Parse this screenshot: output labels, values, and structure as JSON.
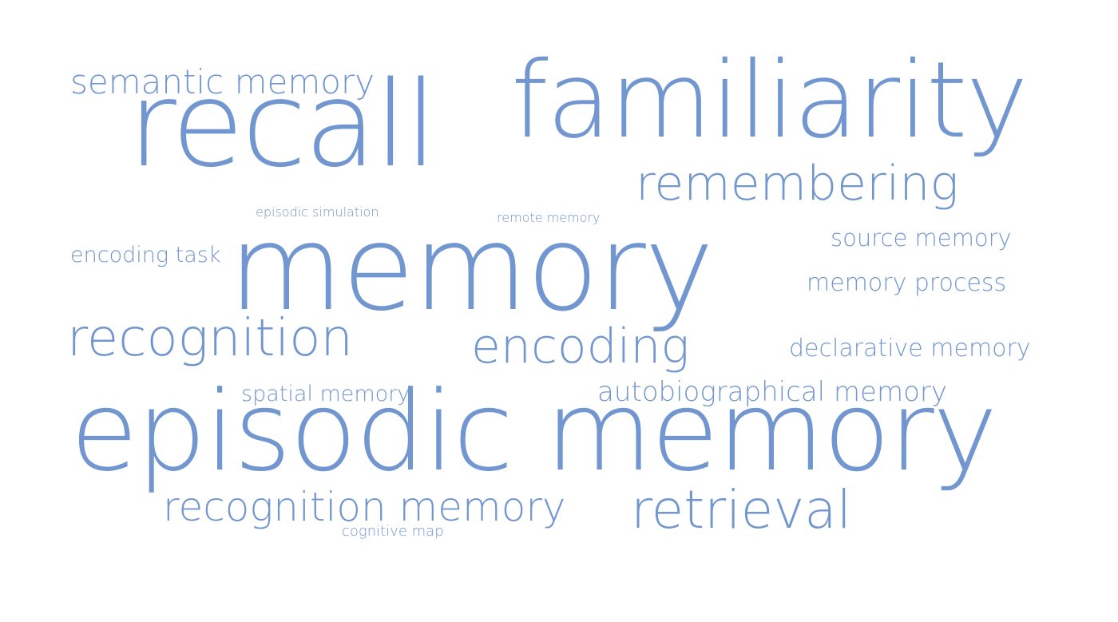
{
  "cloud": {
    "color": "#7296cf",
    "background": "#ffffff",
    "words": {
      "memory": "memory",
      "episodic_memory": "episodic memory",
      "recall": "recall",
      "familiarity": "familiarity",
      "remembering": "remembering",
      "recognition": "recognition",
      "encoding": "encoding",
      "retrieval": "retrieval",
      "recognition_memory": "recognition memory",
      "semantic_memory": "semantic memory",
      "autobiographical_memory": "autobiographical memory",
      "declarative_memory": "declarative memory",
      "source_memory": "source memory",
      "memory_process": "memory process",
      "encoding_task": "encoding task",
      "spatial_memory": "spatial memory",
      "episodic_simulation": "episodic simulation",
      "remote_memory": "remote memory",
      "cognitive_map": "cognitive map"
    }
  }
}
